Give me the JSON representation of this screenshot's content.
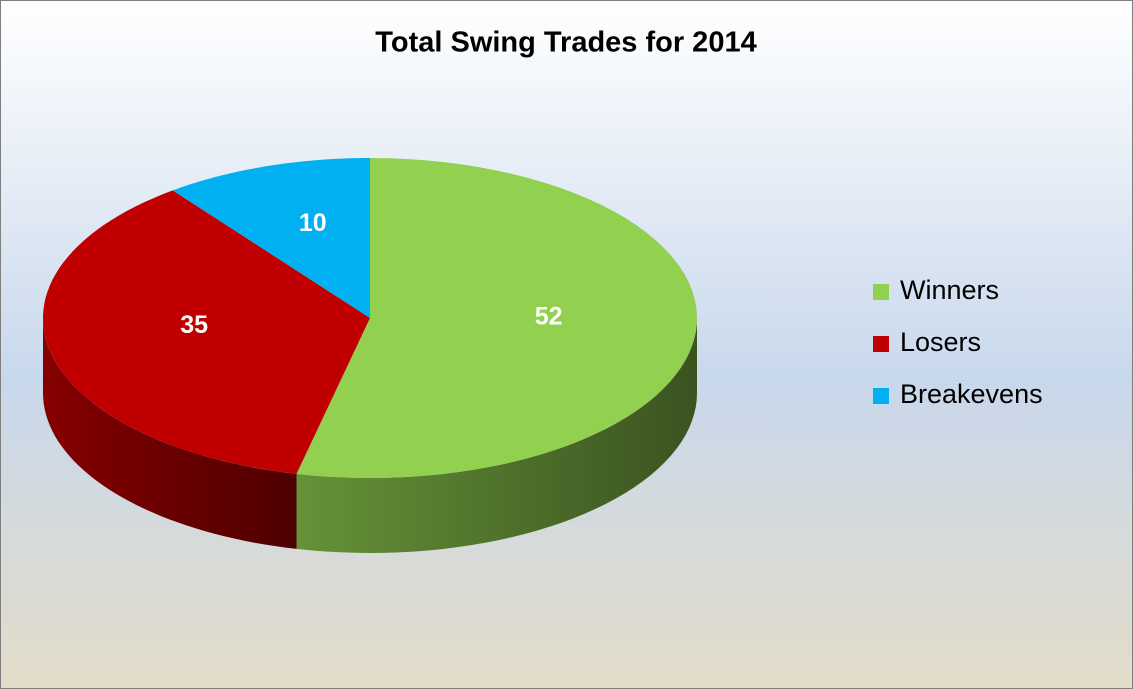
{
  "chart_data": {
    "type": "pie3d",
    "title": "Total Swing Trades for 2014",
    "categories": [
      "Winners",
      "Losers",
      "Breakevens"
    ],
    "values": [
      52,
      35,
      10
    ],
    "colors": [
      "#92d050",
      "#c00000",
      "#00b0f0"
    ],
    "legend": "right"
  }
}
